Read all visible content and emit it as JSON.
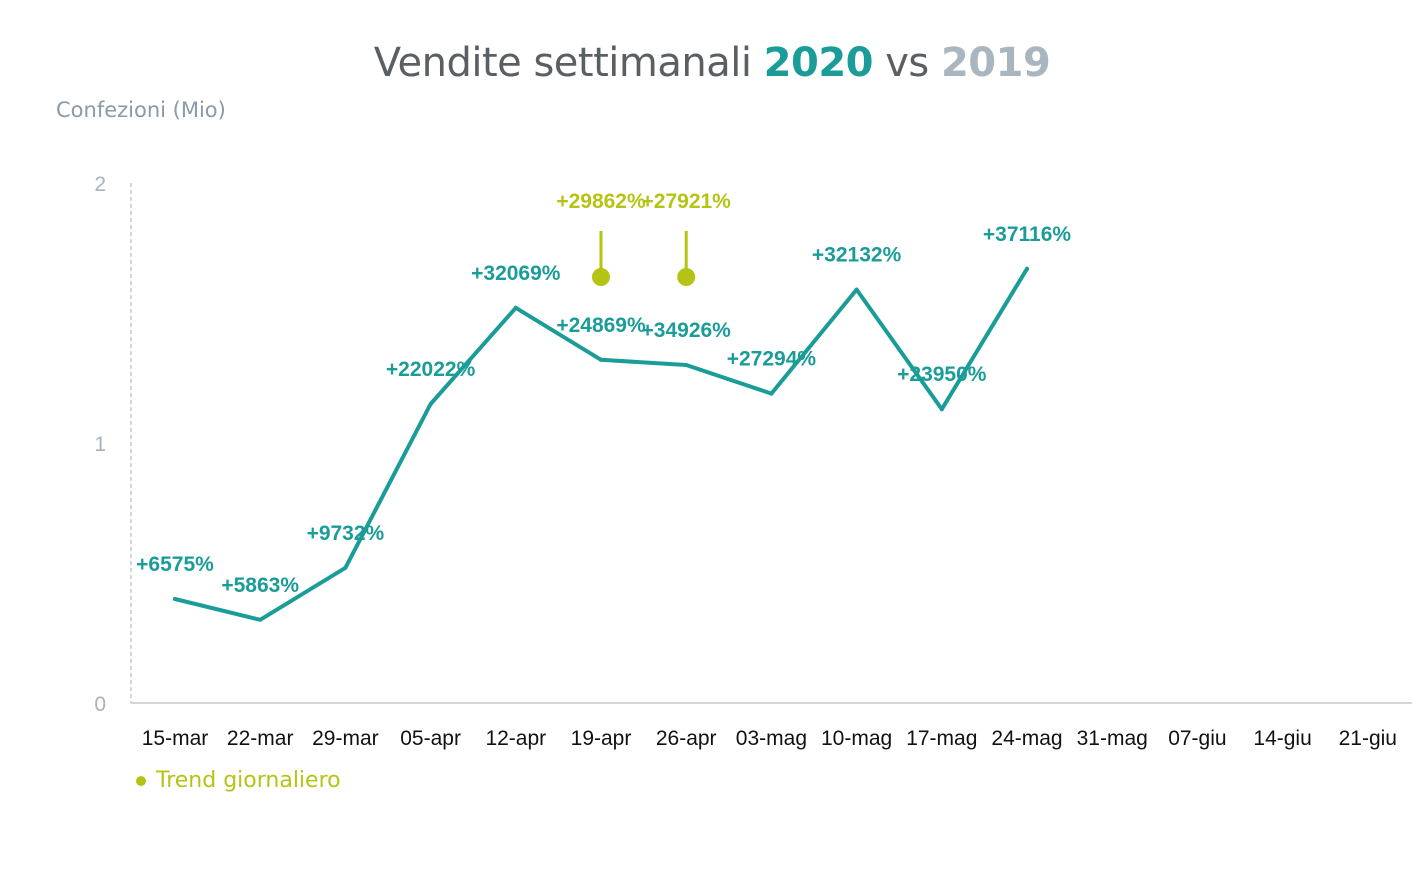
{
  "title": {
    "main": "Vendite settimanali",
    "year_a": "2020",
    "vs": "vs",
    "year_b": "2019"
  },
  "ylabel": "Confezioni (Mio)",
  "legend": {
    "label": "Trend giornaliero"
  },
  "colors": {
    "line": "#1a9c98",
    "annotation": "#b5c414",
    "axis": "#d0d6da",
    "tick": "#a8b3bb"
  },
  "chart_data": {
    "type": "line",
    "title": "Vendite settimanali 2020 vs 2019",
    "ylabel": "Confezioni (Mio)",
    "xlabel": "",
    "ylim": [
      0,
      2
    ],
    "yticks": [
      "0",
      "1",
      "2"
    ],
    "grid": false,
    "categories": [
      "15-mar",
      "22-mar",
      "29-mar",
      "05-apr",
      "12-apr",
      "19-apr",
      "26-apr",
      "03-mag",
      "10-mag",
      "17-mag",
      "24-mag",
      "31-mag",
      "07-giu",
      "14-giu",
      "21-giu"
    ],
    "series": [
      {
        "values": [
          0.4,
          0.32,
          0.52,
          1.15,
          1.52,
          1.32,
          1.3,
          1.19,
          1.59,
          1.13,
          1.67,
          null,
          null,
          null,
          null
        ],
        "labels": [
          "+6575%",
          "+5863%",
          "+9732%",
          "+22022%",
          "+32069%",
          "+24869%",
          "+34926%",
          "+27294%",
          "+32132%",
          "+23950%",
          "+37116%",
          null,
          null,
          null,
          null
        ]
      }
    ],
    "annotations": [
      {
        "name": "Trend giornaliero",
        "category": "19-apr",
        "label": "+29862%"
      },
      {
        "name": "Trend giornaliero",
        "category": "26-apr",
        "label": "+27921%"
      }
    ]
  }
}
